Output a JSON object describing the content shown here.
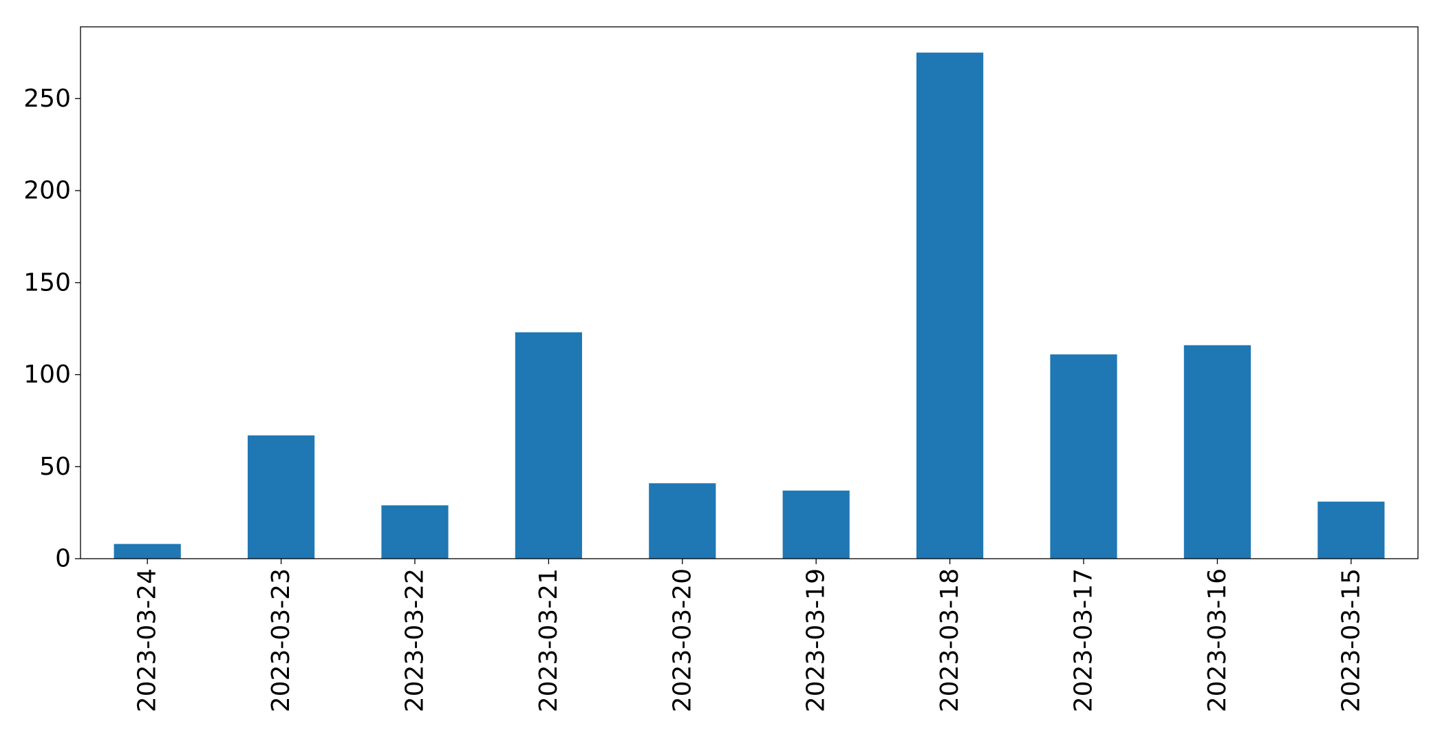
{
  "chart_data": {
    "type": "bar",
    "title": "",
    "xlabel": "",
    "ylabel": "",
    "categories": [
      "2023-03-24",
      "2023-03-23",
      "2023-03-22",
      "2023-03-21",
      "2023-03-20",
      "2023-03-19",
      "2023-03-18",
      "2023-03-17",
      "2023-03-16",
      "2023-03-15"
    ],
    "values": [
      8,
      67,
      29,
      123,
      41,
      37,
      275,
      111,
      116,
      31
    ],
    "ylim": [
      0,
      289
    ],
    "yticks": [
      0,
      50,
      100,
      150,
      200,
      250
    ],
    "bar_color": "#1f77b4",
    "grid": false,
    "legend": "none"
  }
}
